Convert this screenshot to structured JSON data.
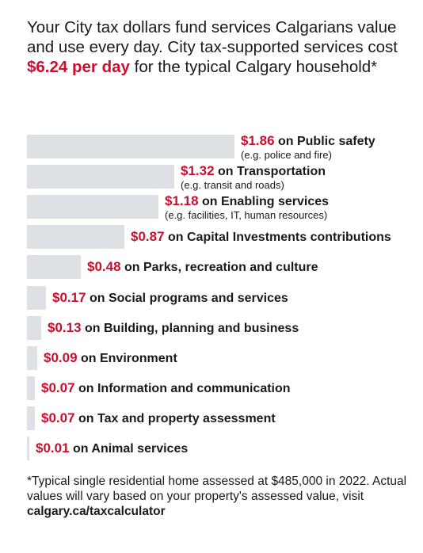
{
  "intro": {
    "before": "Your City tax dollars fund services Calgarians value and use every day. City tax-supported services cost ",
    "highlight": "$6.24 per day",
    "after": " for the typical Calgary household*"
  },
  "chart_data": {
    "type": "bar",
    "orientation": "horizontal",
    "unit": "$ per day",
    "categories": [
      "Public safety",
      "Transportation",
      "Enabling services",
      "Capital Investments contributions",
      "Parks, recreation and culture",
      "Social programs and services",
      "Building, planning and business",
      "Environment",
      "Information and communication",
      "Tax and property assessment",
      "Animal services"
    ],
    "values": [
      1.86,
      1.32,
      1.18,
      0.87,
      0.48,
      0.17,
      0.13,
      0.09,
      0.07,
      0.07,
      0.01
    ],
    "value_labels": [
      "$1.86",
      "$1.32",
      "$1.18",
      "$0.87",
      "$0.48",
      "$0.17",
      "$0.13",
      "$0.09",
      "$0.07",
      "$0.07",
      "$0.01"
    ],
    "connector": "on",
    "sublabels": [
      "(e.g. police and fire)",
      "(e.g. transit and roads)",
      "(e.g. facilities, IT, human resources)",
      "",
      "",
      "",
      "",
      "",
      "",
      "",
      ""
    ],
    "xlim": [
      0,
      1.86
    ],
    "colors": {
      "bar": "#dde0e4",
      "value": "#c8102e",
      "text": "#1a1a1a"
    }
  },
  "footnote": {
    "text": "*Typical single residential home assessed at $485,000 in 2022. Actual values will vary based on your property's assessed value, visit ",
    "link": "calgary.ca/taxcalculator"
  }
}
